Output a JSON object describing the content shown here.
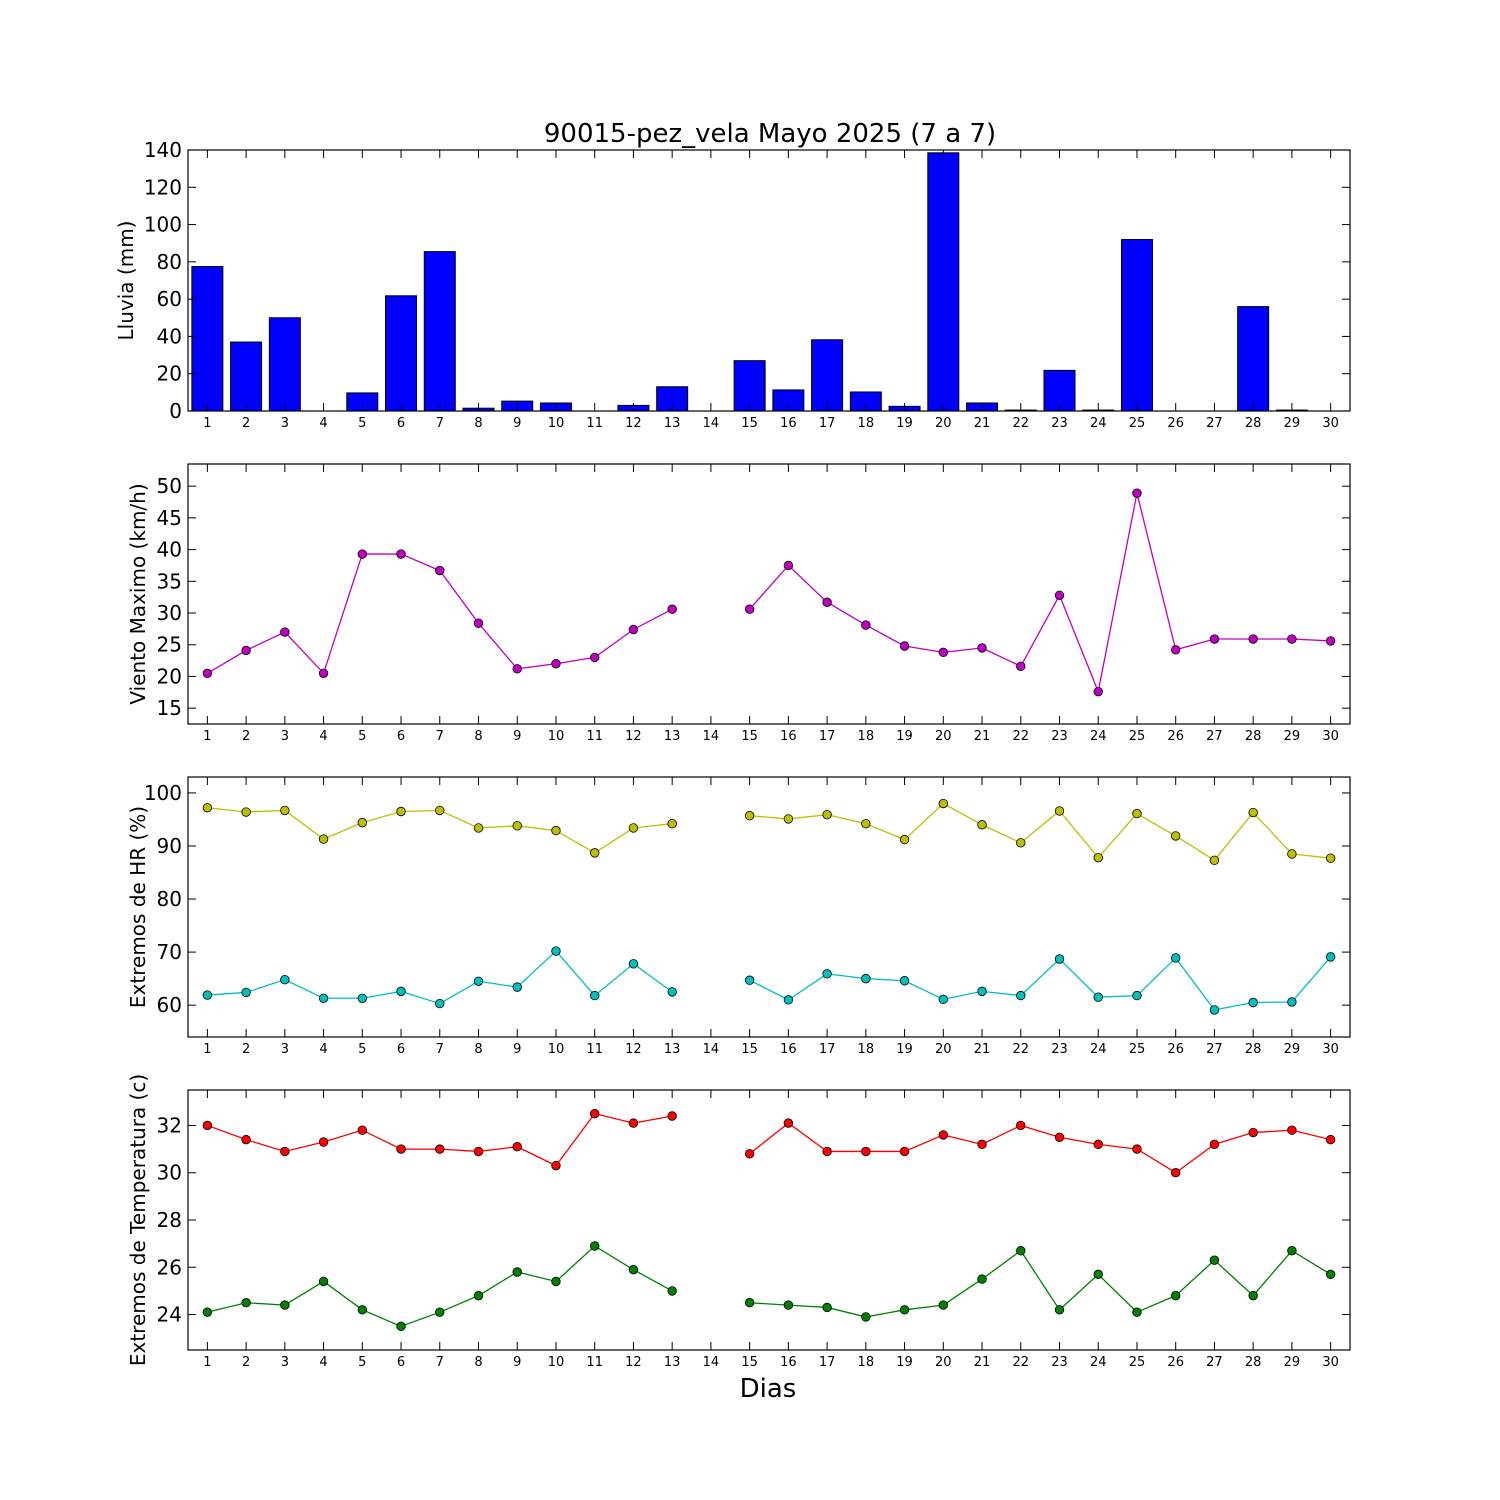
{
  "chart_data": {
    "title": "90015-pez_vela Mayo 2025  (7 a 7)",
    "xlabel": "Dias",
    "x_ticks": [
      1,
      2,
      3,
      4,
      5,
      6,
      7,
      8,
      9,
      10,
      11,
      12,
      13,
      14,
      15,
      16,
      17,
      18,
      19,
      20,
      21,
      22,
      23,
      24,
      25,
      26,
      27,
      28,
      29,
      30
    ],
    "xlim": [
      0.5,
      30.5
    ],
    "panels": [
      {
        "type": "bar",
        "ylabel": "Lluvia (mm)",
        "ylim": [
          0,
          140
        ],
        "yticks": [
          0,
          20,
          40,
          60,
          80,
          100,
          120,
          140
        ],
        "series": [
          {
            "color": "#0000ff",
            "x": [
              1,
              2,
              3,
              4,
              5,
              6,
              7,
              8,
              9,
              10,
              11,
              12,
              13,
              14,
              15,
              16,
              17,
              18,
              19,
              20,
              21,
              22,
              23,
              24,
              25,
              26,
              27,
              28,
              29,
              30
            ],
            "values": [
              77.5,
              37,
              50,
              0,
              9.7,
              61.8,
              85.5,
              1.5,
              5.3,
              4.3,
              0,
              3,
              13,
              0,
              27,
              11.3,
              38.2,
              10.2,
              2.5,
              138.5,
              4.3,
              0.5,
              21.8,
              0.5,
              92,
              0,
              0,
              56,
              0.5,
              0
            ]
          }
        ]
      },
      {
        "type": "line",
        "ylabel": "Viento Maximo (km/h)",
        "ylim": [
          12.5,
          53.5
        ],
        "yticks": [
          15,
          20,
          25,
          30,
          35,
          40,
          45,
          50
        ],
        "series": [
          {
            "color": "#c000c0",
            "x": [
              1,
              2,
              3,
              4,
              5,
              6,
              7,
              8,
              9,
              10,
              11,
              12,
              13,
              15,
              16,
              17,
              18,
              19,
              20,
              21,
              22,
              23,
              24,
              25,
              26,
              27,
              28,
              29,
              30
            ],
            "values": [
              20.5,
              24.1,
              27.0,
              20.5,
              39.3,
              39.3,
              36.7,
              28.4,
              21.2,
              22.0,
              23.0,
              27.4,
              30.6,
              30.6,
              37.5,
              31.7,
              28.1,
              24.8,
              23.8,
              24.5,
              21.6,
              32.8,
              17.6,
              48.9,
              24.2,
              25.9,
              25.9,
              25.9,
              25.6
            ]
          }
        ]
      },
      {
        "type": "line",
        "ylabel": "Extremos de HR (%)",
        "ylim": [
          54,
          103
        ],
        "yticks": [
          60,
          70,
          80,
          90,
          100
        ],
        "series": [
          {
            "color": "#bfbf00",
            "x": [
              1,
              2,
              3,
              4,
              5,
              6,
              7,
              8,
              9,
              10,
              11,
              12,
              13,
              15,
              16,
              17,
              18,
              19,
              20,
              21,
              22,
              23,
              24,
              25,
              26,
              27,
              28,
              29,
              30
            ],
            "values": [
              97.2,
              96.4,
              96.7,
              91.3,
              94.4,
              96.5,
              96.7,
              93.4,
              93.8,
              92.9,
              88.7,
              93.4,
              94.2,
              95.7,
              95.1,
              95.9,
              94.2,
              91.2,
              98.0,
              94.0,
              90.6,
              96.6,
              87.8,
              96.1,
              91.9,
              87.3,
              96.3,
              88.5,
              87.7
            ]
          },
          {
            "color": "#00bfbf",
            "x": [
              1,
              2,
              3,
              4,
              5,
              6,
              7,
              8,
              9,
              10,
              11,
              12,
              13,
              15,
              16,
              17,
              18,
              19,
              20,
              21,
              22,
              23,
              24,
              25,
              26,
              27,
              28,
              29,
              30
            ],
            "values": [
              61.9,
              62.4,
              64.8,
              61.3,
              61.3,
              62.6,
              60.3,
              64.5,
              63.4,
              70.2,
              61.8,
              67.8,
              62.5,
              64.7,
              61.0,
              65.9,
              65.0,
              64.6,
              61.1,
              62.6,
              61.8,
              68.7,
              61.5,
              61.8,
              68.9,
              59.1,
              60.5,
              60.6,
              69.1
            ]
          }
        ]
      },
      {
        "type": "line",
        "ylabel": "Extremos de Temperatura (c)",
        "ylim": [
          22.5,
          33.5
        ],
        "yticks": [
          24,
          26,
          28,
          30,
          32
        ],
        "series": [
          {
            "color": "#ff0000",
            "x": [
              1,
              2,
              3,
              4,
              5,
              6,
              7,
              8,
              9,
              10,
              11,
              12,
              13,
              15,
              16,
              17,
              18,
              19,
              20,
              21,
              22,
              23,
              24,
              25,
              26,
              27,
              28,
              29,
              30
            ],
            "values": [
              32.0,
              31.4,
              30.9,
              31.3,
              31.8,
              31.0,
              31.0,
              30.9,
              31.1,
              30.3,
              32.5,
              32.1,
              32.4,
              30.8,
              32.1,
              30.9,
              30.9,
              30.9,
              31.6,
              31.2,
              32.0,
              31.5,
              31.2,
              31.0,
              30.0,
              31.2,
              31.7,
              31.8,
              31.4
            ]
          },
          {
            "color": "#008000",
            "x": [
              1,
              2,
              3,
              4,
              5,
              6,
              7,
              8,
              9,
              10,
              11,
              12,
              13,
              15,
              16,
              17,
              18,
              19,
              20,
              21,
              22,
              23,
              24,
              25,
              26,
              27,
              28,
              29,
              30
            ],
            "values": [
              24.1,
              24.5,
              24.4,
              25.4,
              24.2,
              23.5,
              24.1,
              24.8,
              25.8,
              25.4,
              26.9,
              25.9,
              25.0,
              24.5,
              24.4,
              24.3,
              23.9,
              24.2,
              24.4,
              25.5,
              26.7,
              24.2,
              25.7,
              24.1,
              24.8,
              26.3,
              24.8,
              26.7,
              25.7
            ]
          }
        ]
      }
    ]
  }
}
